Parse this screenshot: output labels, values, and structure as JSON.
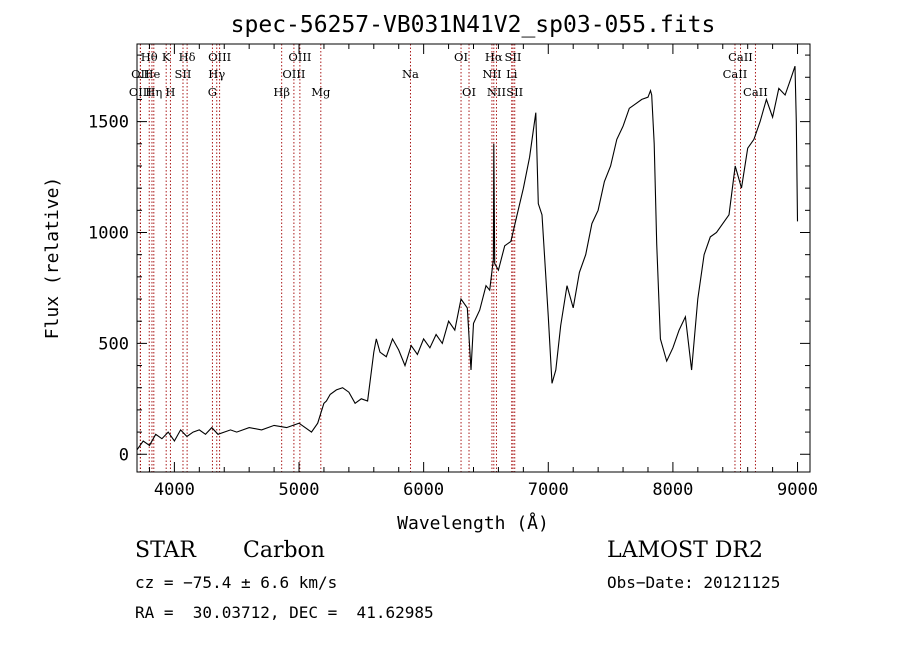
{
  "chart_data": {
    "type": "line",
    "title": "spec-56257-VB031N41V2_sp03-055.fits",
    "xlabel": "Wavelength (Å)",
    "ylabel": "Flux (relative)",
    "xlim": [
      3700,
      9100
    ],
    "ylim": [
      -80,
      1850
    ],
    "x_ticks": [
      4000,
      5000,
      6000,
      7000,
      8000,
      9000
    ],
    "y_ticks": [
      0,
      500,
      1000,
      1500
    ],
    "x_tick_labels": [
      "4000",
      "5000",
      "6000",
      "7000",
      "8000",
      "9000"
    ],
    "y_tick_labels": [
      "0",
      "500",
      "1000",
      "1500"
    ],
    "spectral_lines": [
      {
        "label": "Hθ",
        "wavelength": 3798,
        "row": 0
      },
      {
        "label": "OII",
        "wavelength": 3727,
        "row": 1
      },
      {
        "label": "OIII",
        "wavelength": 3727,
        "row": 2
      },
      {
        "label": "He",
        "wavelength": 3820,
        "row": 1
      },
      {
        "label": "Hη",
        "wavelength": 3835,
        "row": 2
      },
      {
        "label": "K",
        "wavelength": 3934,
        "row": 0
      },
      {
        "label": "SII",
        "wavelength": 4069,
        "row": 1
      },
      {
        "label": "H",
        "wavelength": 3968,
        "row": 2
      },
      {
        "label": "Hδ",
        "wavelength": 4102,
        "row": 0
      },
      {
        "label": "OIII",
        "wavelength": 4363,
        "row": 0
      },
      {
        "label": "Hγ",
        "wavelength": 4340,
        "row": 1
      },
      {
        "label": "G",
        "wavelength": 4305,
        "row": 2
      },
      {
        "label": "OIII",
        "wavelength": 5007,
        "row": 0
      },
      {
        "label": "OIII",
        "wavelength": 4959,
        "row": 1
      },
      {
        "label": "Hβ",
        "wavelength": 4861,
        "row": 2
      },
      {
        "label": "Mg",
        "wavelength": 5175,
        "row": 2
      },
      {
        "label": "Na",
        "wavelength": 5894,
        "row": 1
      },
      {
        "label": "OI",
        "wavelength": 6300,
        "row": 0
      },
      {
        "label": "OI",
        "wavelength": 6364,
        "row": 2
      },
      {
        "label": "Hα",
        "wavelength": 6563,
        "row": 0
      },
      {
        "label": "NII",
        "wavelength": 6548,
        "row": 1
      },
      {
        "label": "NII",
        "wavelength": 6584,
        "row": 2
      },
      {
        "label": "SII",
        "wavelength": 6717,
        "row": 0
      },
      {
        "label": "Li",
        "wavelength": 6707,
        "row": 1
      },
      {
        "label": "SII",
        "wavelength": 6731,
        "row": 2
      },
      {
        "label": "CaII",
        "wavelength": 8542,
        "row": 0
      },
      {
        "label": "CaII",
        "wavelength": 8498,
        "row": 1
      },
      {
        "label": "CaII",
        "wavelength": 8662,
        "row": 2
      }
    ],
    "series": [
      {
        "name": "flux",
        "x": [
          3700,
          3750,
          3800,
          3850,
          3900,
          3950,
          4000,
          4050,
          4100,
          4150,
          4200,
          4250,
          4300,
          4350,
          4400,
          4450,
          4500,
          4600,
          4700,
          4800,
          4900,
          5000,
          5100,
          5150,
          5200,
          5220,
          5250,
          5300,
          5350,
          5400,
          5450,
          5500,
          5550,
          5600,
          5620,
          5650,
          5700,
          5750,
          5800,
          5850,
          5900,
          5950,
          6000,
          6050,
          6100,
          6150,
          6200,
          6250,
          6300,
          6350,
          6380,
          6400,
          6450,
          6500,
          6530,
          6560,
          6563,
          6570,
          6600,
          6650,
          6700,
          6750,
          6800,
          6850,
          6880,
          6900,
          6920,
          6950,
          7000,
          7030,
          7060,
          7100,
          7150,
          7200,
          7250,
          7300,
          7350,
          7400,
          7450,
          7500,
          7550,
          7600,
          7650,
          7700,
          7750,
          7800,
          7820,
          7830,
          7850,
          7870,
          7900,
          7950,
          8000,
          8050,
          8100,
          8150,
          8200,
          8250,
          8300,
          8350,
          8400,
          8450,
          8500,
          8550,
          8600,
          8650,
          8700,
          8750,
          8800,
          8850,
          8900,
          8950,
          8980,
          8990,
          9000
        ],
        "y": [
          20,
          60,
          40,
          90,
          70,
          100,
          60,
          110,
          80,
          100,
          110,
          90,
          120,
          90,
          100,
          110,
          100,
          120,
          110,
          130,
          120,
          140,
          100,
          140,
          230,
          240,
          270,
          290,
          300,
          280,
          230,
          250,
          240,
          460,
          520,
          460,
          440,
          520,
          470,
          400,
          490,
          450,
          520,
          480,
          540,
          500,
          600,
          560,
          700,
          660,
          380,
          590,
          650,
          760,
          740,
          880,
          1400,
          860,
          830,
          940,
          960,
          1080,
          1200,
          1340,
          1460,
          1540,
          1130,
          1080,
          620,
          320,
          380,
          580,
          760,
          660,
          820,
          900,
          1040,
          1100,
          1230,
          1300,
          1420,
          1480,
          1560,
          1580,
          1600,
          1610,
          1640,
          1620,
          1400,
          950,
          520,
          420,
          480,
          560,
          620,
          380,
          700,
          900,
          980,
          1000,
          1040,
          1080,
          1300,
          1200,
          1380,
          1420,
          1500,
          1600,
          1520,
          1650,
          1620,
          1700,
          1750,
          1500,
          1050
        ]
      }
    ]
  },
  "footer": {
    "object_type": "STAR",
    "subclass": "Carbon",
    "survey": "LAMOST DR2",
    "cz": "cz = −75.4 ± 6.6 km/s",
    "obs_date": "Obs−Date: 20121125",
    "coords": "RA =  30.03712, DEC =  41.62985"
  }
}
